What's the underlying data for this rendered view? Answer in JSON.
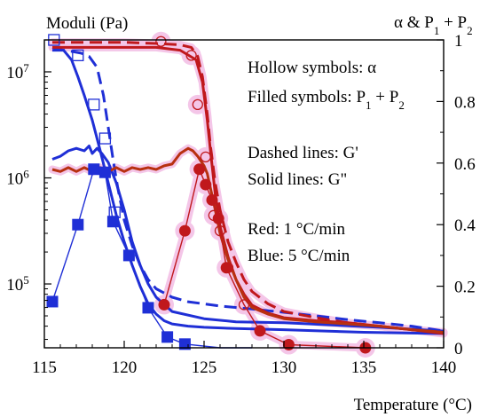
{
  "chart_data": {
    "type": "line",
    "x_axis": {
      "label": "Temperature (°C)",
      "range": [
        115,
        140
      ],
      "ticks": [
        115,
        120,
        125,
        130,
        135,
        140
      ]
    },
    "y_left": {
      "title": "Moduli (Pa)",
      "scale": "log",
      "range": [
        25000,
        20000000
      ],
      "ticks": [
        {
          "value": 100000,
          "mantissa": "10",
          "exponent": "5"
        },
        {
          "value": 1000000,
          "mantissa": "10",
          "exponent": "6"
        },
        {
          "value": 10000000,
          "mantissa": "10",
          "exponent": "7"
        }
      ]
    },
    "y_right": {
      "title_main": "α & P",
      "title_sub1": "1",
      "title_mid": " + P",
      "title_sub2": "2",
      "range": [
        0,
        1
      ],
      "ticks": [
        {
          "value": 0,
          "label": "0"
        },
        {
          "value": 0.2,
          "label": "0.2"
        },
        {
          "value": 0.4,
          "label": "0.4"
        },
        {
          "value": 0.6,
          "label": "0.6"
        },
        {
          "value": 0.8,
          "label": "0.8"
        },
        {
          "value": 1,
          "label": "1"
        }
      ]
    },
    "annotations": {
      "hollow": "Hollow symbols: α",
      "filled_main": "Filled symbols: P",
      "filled_sub1": "1",
      "filled_mid": " + P",
      "filled_sub2": "2",
      "dashed": "Dashed lines: G'",
      "solid": "Solid lines: G\"",
      "red": "Red: 1 °C/min",
      "blue": "Blue: 5 °C/min"
    },
    "colors": {
      "red": "#c0181c",
      "red_dark": "#b83010",
      "blue": "#1f2fd6",
      "halo": "#f4c6e8"
    },
    "series": [
      {
        "color": "blue",
        "style": "dashed",
        "axis": "left",
        "points": [
          [
            115.5,
            16000000
          ],
          [
            116.3,
            16000000
          ],
          [
            117.3,
            15000000
          ],
          [
            117.8,
            14000000
          ],
          [
            118.3,
            11000000
          ],
          [
            118.7,
            6000000
          ],
          [
            119,
            3000000
          ],
          [
            119.3,
            1500000
          ],
          [
            119.6,
            800000
          ],
          [
            120,
            400000
          ],
          [
            120.5,
            230000
          ],
          [
            121,
            150000
          ],
          [
            121.5,
            110000
          ],
          [
            122,
            90000
          ],
          [
            123,
            75000
          ],
          [
            124,
            68000
          ],
          [
            126,
            62000
          ],
          [
            128,
            58000
          ],
          [
            130,
            54000
          ],
          [
            132,
            50000
          ],
          [
            134,
            46000
          ],
          [
            136,
            43000
          ],
          [
            138,
            40000
          ],
          [
            140,
            36000
          ]
        ]
      },
      {
        "color": "blue",
        "style": "solid",
        "axis": "left",
        "points": [
          [
            115.5,
            1500000
          ],
          [
            116,
            1600000
          ],
          [
            116.5,
            1800000
          ],
          [
            117,
            1900000
          ],
          [
            117.5,
            1800000
          ],
          [
            117.8,
            2000000
          ],
          [
            118,
            1700000
          ],
          [
            118.3,
            1900000
          ],
          [
            118.6,
            1700000
          ],
          [
            119,
            1400000
          ],
          [
            119.5,
            900000
          ],
          [
            120,
            500000
          ],
          [
            120.5,
            250000
          ],
          [
            121,
            150000
          ],
          [
            121.5,
            100000
          ],
          [
            122,
            75000
          ],
          [
            123,
            55000
          ],
          [
            125,
            47000
          ],
          [
            127,
            44000
          ],
          [
            130,
            43000
          ],
          [
            133,
            41000
          ],
          [
            136,
            39000
          ],
          [
            140,
            36000
          ]
        ]
      },
      {
        "color": "blue",
        "style": "solid",
        "axis": "left",
        "points": [
          [
            115.5,
            17000000
          ],
          [
            116.2,
            16000000
          ],
          [
            116.7,
            13000000
          ],
          [
            117.1,
            9000000
          ],
          [
            117.5,
            6000000
          ],
          [
            118,
            3500000
          ],
          [
            118.5,
            1800000
          ],
          [
            119,
            900000
          ],
          [
            119.5,
            450000
          ],
          [
            120,
            250000
          ],
          [
            120.5,
            150000
          ],
          [
            121,
            95000
          ],
          [
            121.5,
            65000
          ],
          [
            122,
            52000
          ],
          [
            122.5,
            45000
          ],
          [
            123,
            42000
          ],
          [
            124,
            40000
          ],
          [
            125,
            39000
          ],
          [
            127,
            38000
          ],
          [
            130,
            37000
          ],
          [
            135,
            35000
          ],
          [
            140,
            34000
          ]
        ]
      },
      {
        "color": "red",
        "style": "dashed",
        "axis": "left",
        "points": [
          [
            115.5,
            19000000
          ],
          [
            118,
            19000000
          ],
          [
            120,
            19000000
          ],
          [
            122,
            18500000
          ],
          [
            123.5,
            18000000
          ],
          [
            124.2,
            17000000
          ],
          [
            124.6,
            14000000
          ],
          [
            124.9,
            9000000
          ],
          [
            125.2,
            4000000
          ],
          [
            125.4,
            2000000
          ],
          [
            125.7,
            900000
          ],
          [
            126,
            500000
          ],
          [
            126.5,
            250000
          ],
          [
            127,
            160000
          ],
          [
            127.5,
            110000
          ],
          [
            128,
            85000
          ],
          [
            129,
            65000
          ],
          [
            130,
            55000
          ],
          [
            132,
            48000
          ],
          [
            134,
            43000
          ],
          [
            136,
            40000
          ],
          [
            138,
            37000
          ],
          [
            140,
            35000
          ]
        ]
      },
      {
        "color": "red",
        "style": "solid",
        "axis": "left",
        "points": [
          [
            115.5,
            17000000
          ],
          [
            122,
            17000000
          ],
          [
            123.5,
            16000000
          ],
          [
            124.5,
            13000000
          ],
          [
            124.9,
            8000000
          ],
          [
            125.2,
            3500000
          ],
          [
            125.4,
            1800000
          ],
          [
            125.7,
            700000
          ],
          [
            126,
            350000
          ],
          [
            126.5,
            180000
          ],
          [
            127,
            110000
          ],
          [
            127.5,
            80000
          ],
          [
            128,
            63000
          ],
          [
            129,
            53000
          ],
          [
            130,
            48000
          ],
          [
            132,
            45000
          ],
          [
            134,
            43000
          ],
          [
            136,
            40000
          ],
          [
            138,
            37000
          ],
          [
            140,
            34000
          ]
        ]
      },
      {
        "color": "red_dark",
        "style": "solid",
        "axis": "left",
        "points": [
          [
            115.5,
            1200000
          ],
          [
            116,
            1150000
          ],
          [
            116.5,
            1250000
          ],
          [
            117,
            1150000
          ],
          [
            117.5,
            1250000
          ],
          [
            118,
            1150000
          ],
          [
            118.5,
            1250000
          ],
          [
            119,
            1150000
          ],
          [
            119.5,
            1250000
          ],
          [
            120,
            1150000
          ],
          [
            120.5,
            1250000
          ],
          [
            121,
            1200000
          ],
          [
            121.5,
            1250000
          ],
          [
            122,
            1200000
          ],
          [
            122.5,
            1300000
          ],
          [
            123,
            1350000
          ],
          [
            123.5,
            1700000
          ],
          [
            124,
            1900000
          ],
          [
            124.3,
            1800000
          ],
          [
            124.6,
            1600000
          ],
          [
            125,
            1300000
          ],
          [
            125.2,
            1100000
          ],
          [
            125.4,
            800000
          ],
          [
            125.7,
            500000
          ],
          [
            126,
            300000
          ],
          [
            126.5,
            170000
          ],
          [
            127,
            110000
          ],
          [
            127.5,
            75000
          ],
          [
            128,
            60000
          ],
          [
            129,
            52000
          ],
          [
            130,
            47000
          ],
          [
            132,
            44000
          ],
          [
            134,
            42000
          ],
          [
            136,
            40000
          ],
          [
            138,
            37000
          ],
          [
            140,
            35000
          ]
        ]
      },
      {
        "color": "blue",
        "style": "solid",
        "axis": "right",
        "marker": "filled-square",
        "points": [
          [
            115.5,
            0.15
          ],
          [
            117.1,
            0.4
          ],
          [
            118.1,
            0.58
          ],
          [
            118.8,
            0.57
          ],
          [
            119.3,
            0.41
          ],
          [
            120.3,
            0.3
          ],
          [
            121.5,
            0.13
          ],
          [
            122.7,
            0.035
          ],
          [
            123.8,
            0.012
          ],
          [
            126,
            0.0
          ],
          [
            128,
            0.0
          ]
        ],
        "marker_points": [
          [
            115.5,
            0.15
          ],
          [
            117.1,
            0.4
          ],
          [
            118.1,
            0.58
          ],
          [
            118.8,
            0.57
          ],
          [
            119.3,
            0.41
          ],
          [
            120.3,
            0.3
          ],
          [
            121.5,
            0.13
          ],
          [
            122.7,
            0.035
          ],
          [
            123.8,
            0.012
          ]
        ]
      },
      {
        "color": "blue",
        "style": "none",
        "axis": "right",
        "marker": "hollow-square",
        "marker_points": [
          [
            115.6,
            1.0
          ],
          [
            117.1,
            0.95
          ],
          [
            118.1,
            0.79
          ],
          [
            118.8,
            0.68
          ],
          [
            119.4,
            0.44
          ]
        ]
      },
      {
        "color": "red",
        "style": "solid",
        "axis": "right",
        "marker": "filled-circle",
        "points": [
          [
            122.5,
            0.14
          ],
          [
            123.8,
            0.38
          ],
          [
            124.7,
            0.58
          ],
          [
            125.1,
            0.53
          ],
          [
            125.5,
            0.48
          ],
          [
            125.9,
            0.42
          ],
          [
            126.4,
            0.26
          ],
          [
            127.5,
            0.14
          ],
          [
            128.5,
            0.055
          ],
          [
            130.3,
            0.01
          ],
          [
            135.1,
            0.0
          ]
        ],
        "marker_points": [
          [
            122.5,
            0.14
          ],
          [
            123.8,
            0.38
          ],
          [
            124.7,
            0.58
          ],
          [
            125.1,
            0.53
          ],
          [
            125.5,
            0.48
          ],
          [
            125.9,
            0.42
          ],
          [
            126.4,
            0.26
          ],
          [
            128.5,
            0.055
          ],
          [
            130.3,
            0.01
          ],
          [
            135.1,
            0.0
          ]
        ]
      },
      {
        "color": "red",
        "style": "none",
        "axis": "right",
        "marker": "hollow-circle",
        "marker_points": [
          [
            122.3,
            0.995
          ],
          [
            124.2,
            0.95
          ],
          [
            124.6,
            0.79
          ],
          [
            125.1,
            0.62
          ],
          [
            125.6,
            0.43
          ],
          [
            126,
            0.38
          ],
          [
            126.5,
            0.26
          ],
          [
            127.5,
            0.14
          ]
        ]
      }
    ]
  }
}
